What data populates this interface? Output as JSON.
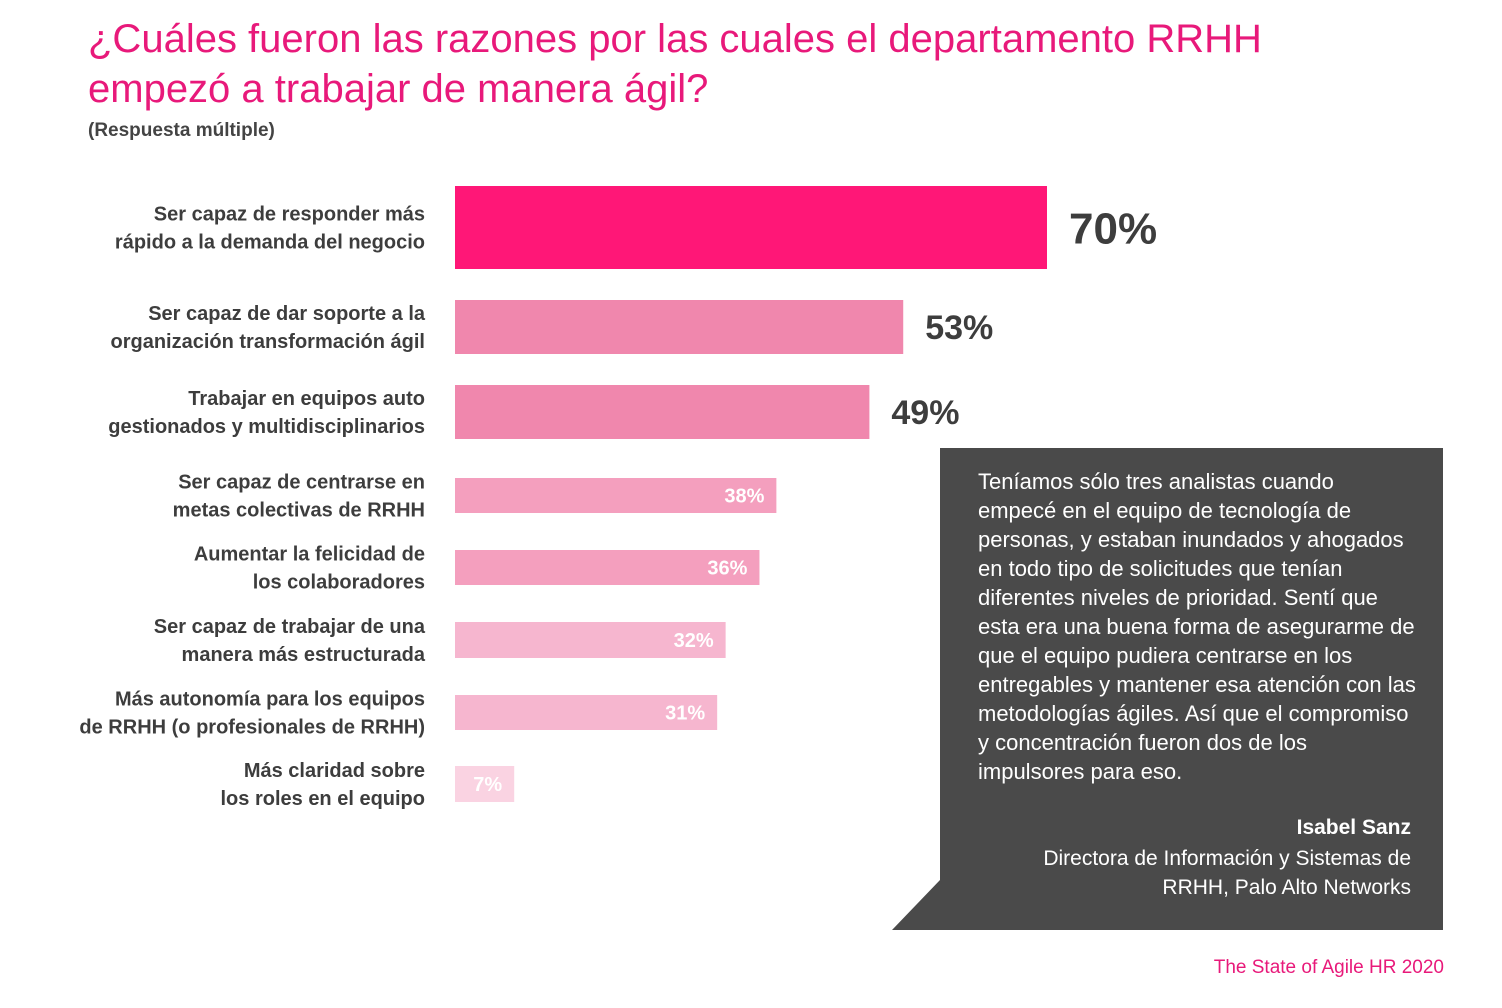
{
  "header": {
    "title": "¿Cuáles fueron las razones por las cuales el departamento RRHH empezó a trabajar de manera ágil?",
    "subtitle": "(Respuesta múltiple)"
  },
  "chart_data": {
    "type": "bar",
    "orientation": "horizontal",
    "title": "¿Cuáles fueron las razones por las cuales el departamento RRHH empezó a trabajar de manera ágil?",
    "subtitle": "(Respuesta múltiple)",
    "categories": [
      [
        "Ser capaz   de responder más",
        "rápido a la demanda del negocio"
      ],
      [
        "Ser capaz de dar soporte a la",
        "organización transformación ágil"
      ],
      [
        "Trabajar en equipos auto",
        "gestionados y multidisciplinarios"
      ],
      [
        "Ser capaz de centrarse en",
        "metas colectivas de RRHH"
      ],
      [
        "Aumentar la felicidad de",
        "los colaboradores"
      ],
      [
        "Ser capaz de trabajar de una",
        "manera más estructurada"
      ],
      [
        "Más autonomía para los equipos",
        "de RRHH (o profesionales de RRHH)"
      ],
      [
        "Más claridad sobre",
        "los roles en el equipo"
      ]
    ],
    "values": [
      70,
      53,
      49,
      38,
      36,
      32,
      31,
      7
    ],
    "value_labels": [
      "70%",
      "53%",
      "49%",
      "38%",
      "36%",
      "32%",
      "31%",
      "7%"
    ],
    "bar_colors": [
      "#ff1777",
      "#f087ad",
      "#f087ad",
      "#f49fbe",
      "#f49fbe",
      "#f6b6cf",
      "#f6b6cf",
      "#fad3e2"
    ],
    "label_color": "#3d3d3d",
    "unit": "%",
    "xlim": [
      0,
      100
    ]
  },
  "quote": {
    "text": "Teníamos sólo tres analistas cuando empecé en el equipo de tecnología de personas, y estaban inundados y ahogados en todo tipo de solicitudes que tenían diferentes niveles de prioridad. Sentí que esta era una buena forma de asegurarme de que el equipo pudiera centrarse en los entregables y mantener esa atención con las metodologías ágiles. Así que el compromiso y concentración fueron dos de los impulsores para eso.",
    "author": "Isabel Sanz",
    "role": "Directora de Información y Sistemas de RRHH, Palo Alto Networks"
  },
  "footer": {
    "source": "The State of Agile HR 2020"
  }
}
